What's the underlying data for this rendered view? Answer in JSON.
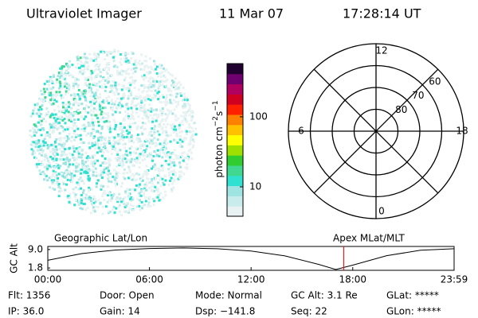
{
  "header": {
    "title": "Ultraviolet Imager",
    "date": "11 Mar 07",
    "time": "17:28:14 UT"
  },
  "colorbar": {
    "label": "photon cm",
    "label_sup1": "−2",
    "label_mid": "s",
    "label_sup2": "−1",
    "log": true,
    "clim": [
      3.8,
      575
    ],
    "ticks": [
      10,
      100
    ],
    "colors": [
      "#e8f2f2",
      "#c8ecec",
      "#9fe3e3",
      "#30e0d0",
      "#40d890",
      "#30cc30",
      "#a0e000",
      "#ffff00",
      "#ffc000",
      "#ff8000",
      "#ff2000",
      "#d00020",
      "#b00060",
      "#700070",
      "#200030"
    ]
  },
  "dial": {
    "rlim": [
      90,
      50
    ],
    "rings": [
      80,
      70,
      60
    ],
    "mlt_labels": [
      12,
      18,
      6,
      0
    ]
  },
  "orbit": {
    "ylabel": "GC Alt",
    "left_label": "Geographic Lat/Lon",
    "right_label": "Apex MLat/MLT",
    "ylim": [
      0.9,
      10.2
    ],
    "yticks": [
      {
        "value": 9,
        "label": "9.0"
      },
      1.8
    ],
    "xlim": [
      0,
      23.983
    ],
    "xticks": [
      {
        "value": 0,
        "label": "00:00"
      },
      {
        "value": 6,
        "label": "06:00"
      },
      {
        "value": 12,
        "label": "12:00"
      },
      {
        "value": 18,
        "label": "18:00"
      },
      {
        "value": 23.983,
        "label": "23:59"
      }
    ],
    "x": [
      0,
      2,
      4,
      6,
      8,
      10,
      12,
      14,
      16,
      17,
      18,
      20,
      22,
      23.983
    ],
    "values": [
      4.8,
      7.4,
      8.8,
      9.4,
      9.6,
      9.3,
      8.4,
      6.5,
      3.2,
      1.2,
      2.9,
      6.6,
      8.7,
      9.3
    ],
    "line_color": "#000000",
    "marker": 17.4706,
    "marker_color": "#e02020"
  },
  "footer": {
    "rows": [
      [
        "Flt: 1356",
        "Door: Open",
        "Mode: Normal",
        "GC Alt: 3.1 Re",
        "GLat: *****"
      ],
      [
        "IP: 36.0",
        "Gain: 14",
        "Dsp: −141.8",
        "Seq: 22",
        "GLon: *****"
      ]
    ]
  }
}
